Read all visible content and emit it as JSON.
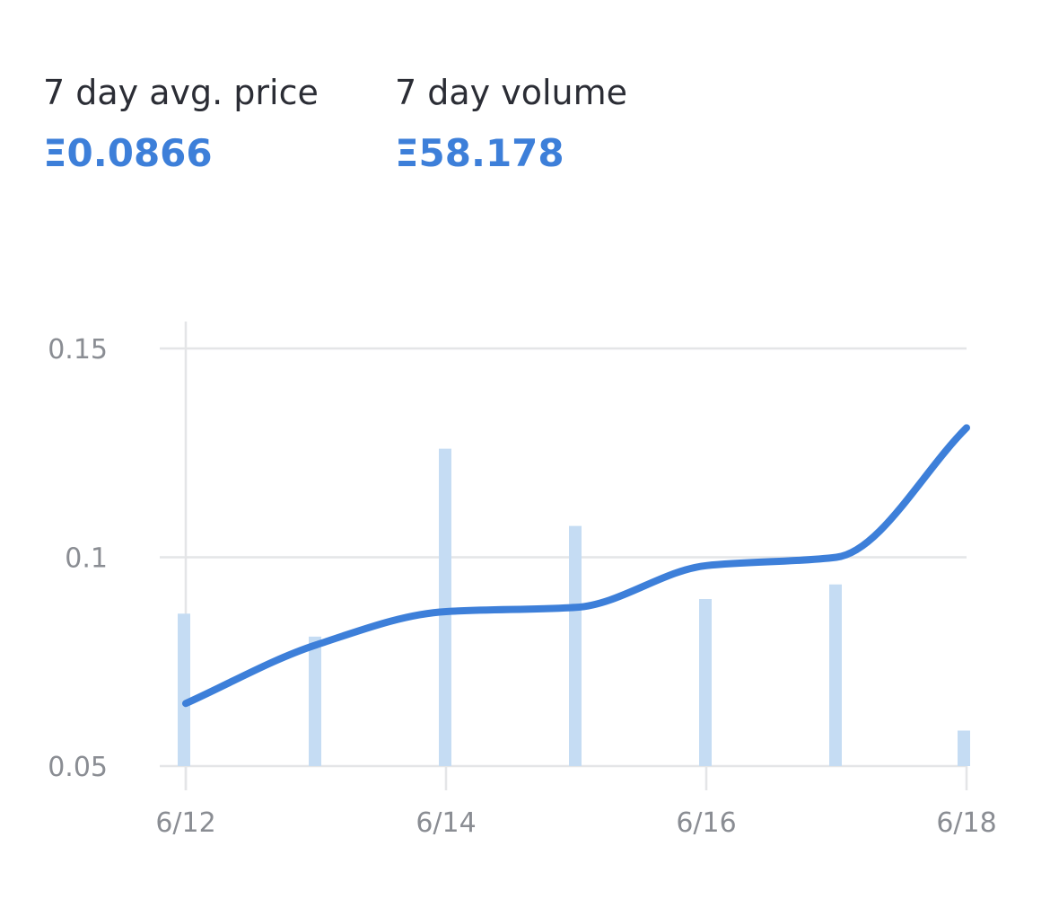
{
  "stats": {
    "avg_price": {
      "label": "7 day avg. price",
      "value": "Ξ0.0866"
    },
    "volume": {
      "label": "7 day volume",
      "value": "Ξ58.178"
    }
  },
  "colors": {
    "line": "#3d7fd9",
    "bar": "#c5dcf3",
    "grid": "#e4e5e7",
    "tick": "#8a8d93"
  },
  "chart_data": {
    "type": "line",
    "x_tick_labels": [
      "6/12",
      "6/14",
      "6/16",
      "6/18"
    ],
    "y_tick_labels": [
      "0.15",
      "0.1",
      "0.05"
    ],
    "y_ticks": [
      0.15,
      0.1,
      0.05
    ],
    "ylim": [
      0.05,
      0.15
    ],
    "x": [
      "6/12",
      "6/13",
      "6/14",
      "6/15",
      "6/16",
      "6/17",
      "6/18"
    ],
    "series": [
      {
        "type": "line",
        "values": [
          0.065,
          0.079,
          0.087,
          0.088,
          0.098,
          0.1,
          0.131
        ]
      },
      {
        "type": "bar",
        "values": [
          0.0865,
          0.081,
          0.126,
          0.1075,
          0.09,
          0.0935,
          0.0585
        ]
      }
    ],
    "grid": true
  }
}
